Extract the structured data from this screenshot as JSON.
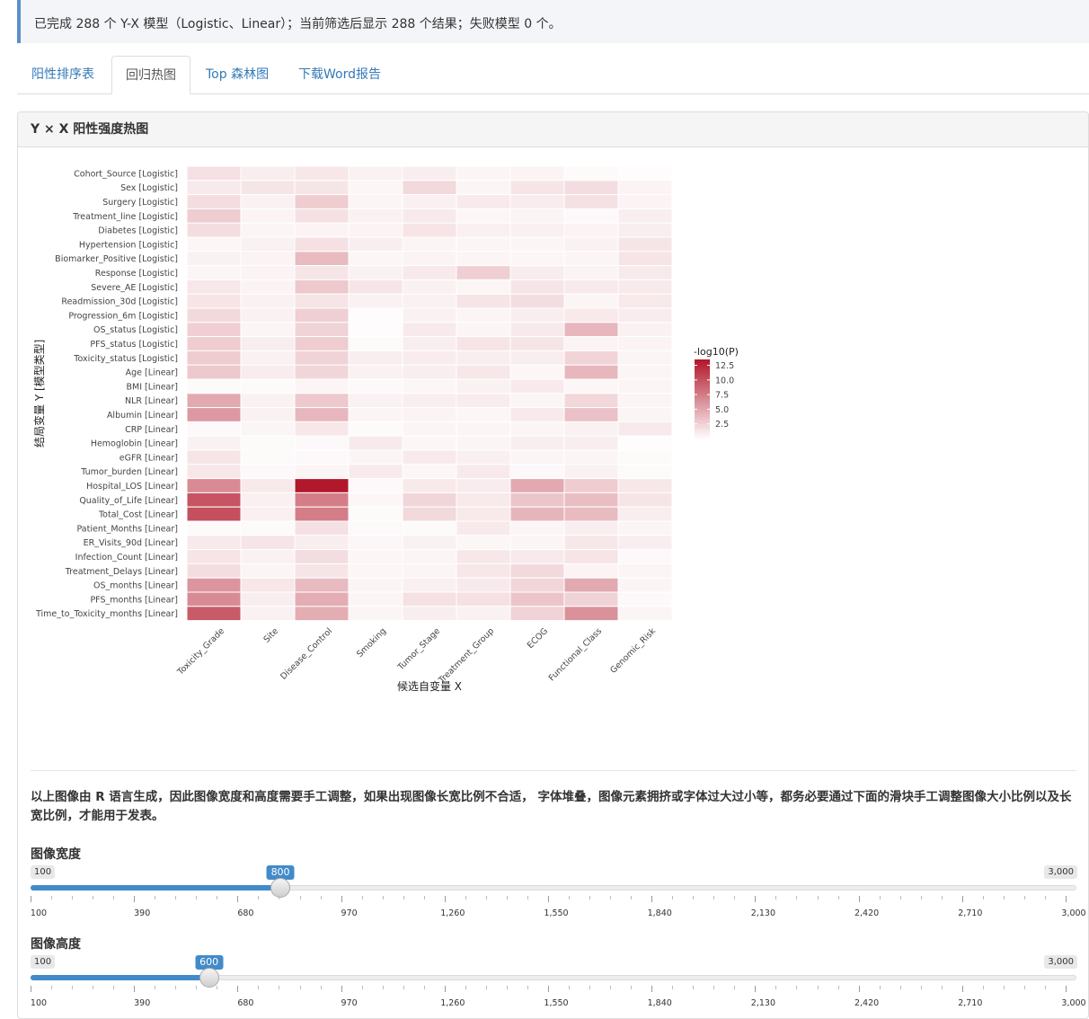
{
  "alert": {
    "text": "已完成 288 个 Y-X 模型（Logistic、Linear）；当前筛选后显示 288 个结果；失败模型 0 个。"
  },
  "tabs": [
    {
      "label": "阳性排序表",
      "active": false
    },
    {
      "label": "回归热图",
      "active": true
    },
    {
      "label": "Top 森林图",
      "active": false
    },
    {
      "label": "下载Word报告",
      "active": false
    }
  ],
  "panel": {
    "title": "Y × X 阳性强度热图"
  },
  "chart_data": {
    "type": "heatmap",
    "xlabel": "候选自变量 X",
    "ylabel": "结局变量 Y [模型类型]",
    "legend_title": "-log10(P)",
    "legend_ticks": [
      "2.5",
      "5.0",
      "7.5",
      "10.0",
      "12.5"
    ],
    "color_low": "#ffffff",
    "color_high": "#b2182b",
    "value_max": 13.5,
    "x": [
      "Toxicity_Grade",
      "Site",
      "Disease_Control",
      "Smoking",
      "Tumor_Stage",
      "Treatment_Group",
      "ECOG",
      "Functional_Class",
      "Genomic_Risk"
    ],
    "y": [
      "Cohort_Source [Logistic]",
      "Sex [Logistic]",
      "Surgery [Logistic]",
      "Treatment_line [Logistic]",
      "Diabetes [Logistic]",
      "Hypertension [Logistic]",
      "Biomarker_Positive [Logistic]",
      "Response [Logistic]",
      "Severe_AE [Logistic]",
      "Readmission_30d [Logistic]",
      "Progression_6m [Logistic]",
      "OS_status [Logistic]",
      "PFS_status [Logistic]",
      "Toxicity_status [Logistic]",
      "Age [Linear]",
      "BMI [Linear]",
      "NLR [Linear]",
      "Albumin [Linear]",
      "CRP [Linear]",
      "Hemoglobin [Linear]",
      "eGFR [Linear]",
      "Tumor_burden [Linear]",
      "Hospital_LOS [Linear]",
      "Quality_of_Life [Linear]",
      "Total_Cost [Linear]",
      "Patient_Months [Linear]",
      "ER_Visits_90d [Linear]",
      "Infection_Count [Linear]",
      "Treatment_Delays [Linear]",
      "OS_months [Linear]",
      "PFS_months [Linear]",
      "Time_to_Toxicity_months [Linear]"
    ],
    "values": [
      [
        1.8,
        1.0,
        1.4,
        0.8,
        1.0,
        0.6,
        0.7,
        0.3,
        0.2
      ],
      [
        1.2,
        1.5,
        1.5,
        0.5,
        2.2,
        0.6,
        1.5,
        2.0,
        0.7
      ],
      [
        2.0,
        0.8,
        3.0,
        0.6,
        0.9,
        1.2,
        1.1,
        1.8,
        0.7
      ],
      [
        3.0,
        0.7,
        1.8,
        0.8,
        1.2,
        0.5,
        0.7,
        0.4,
        1.0
      ],
      [
        2.0,
        0.6,
        0.7,
        0.7,
        1.6,
        0.9,
        0.9,
        0.7,
        1.0
      ],
      [
        0.5,
        0.8,
        1.8,
        1.0,
        0.6,
        0.6,
        0.6,
        0.8,
        1.5
      ],
      [
        0.8,
        0.7,
        4.0,
        0.5,
        0.7,
        0.6,
        0.5,
        0.6,
        1.6
      ],
      [
        0.6,
        0.7,
        1.5,
        0.8,
        1.3,
        2.8,
        1.1,
        0.7,
        1.2
      ],
      [
        1.4,
        0.7,
        3.2,
        1.5,
        0.8,
        0.6,
        1.5,
        1.3,
        1.2
      ],
      [
        1.6,
        0.8,
        1.6,
        0.8,
        0.8,
        1.6,
        2.0,
        0.6,
        1.3
      ],
      [
        2.2,
        0.8,
        2.8,
        0.2,
        0.8,
        0.6,
        1.0,
        1.3,
        1.1
      ],
      [
        2.8,
        0.6,
        2.6,
        0.2,
        1.2,
        0.6,
        1.2,
        4.2,
        0.8
      ],
      [
        3.0,
        1.0,
        3.0,
        0.3,
        1.0,
        1.6,
        1.5,
        0.7,
        0.7
      ],
      [
        3.0,
        0.8,
        2.6,
        1.0,
        1.1,
        1.0,
        1.0,
        2.5,
        0.6
      ],
      [
        3.2,
        1.1,
        2.4,
        0.8,
        1.0,
        1.4,
        0.5,
        4.2,
        0.6
      ],
      [
        0.3,
        0.3,
        0.6,
        0.4,
        0.5,
        0.8,
        1.2,
        0.5,
        0.6
      ],
      [
        5.0,
        0.8,
        3.2,
        0.8,
        1.0,
        1.1,
        0.6,
        2.3,
        0.6
      ],
      [
        6.0,
        0.8,
        4.2,
        0.6,
        0.7,
        0.5,
        1.2,
        3.6,
        0.6
      ],
      [
        0.4,
        0.6,
        1.4,
        0.3,
        0.6,
        0.6,
        0.6,
        0.8,
        1.2
      ],
      [
        0.8,
        0.3,
        0.4,
        1.2,
        0.5,
        0.6,
        1.0,
        1.0,
        0.2
      ],
      [
        1.5,
        0.3,
        0.4,
        0.6,
        1.2,
        0.9,
        0.6,
        0.6,
        0.3
      ],
      [
        1.4,
        0.4,
        0.6,
        1.2,
        0.5,
        1.2,
        0.4,
        0.8,
        0.3
      ],
      [
        6.8,
        1.3,
        13.5,
        0.4,
        1.3,
        1.1,
        5.0,
        3.0,
        1.4
      ],
      [
        10.0,
        0.9,
        7.6,
        0.5,
        2.4,
        1.3,
        3.4,
        3.8,
        1.5
      ],
      [
        10.3,
        0.9,
        7.6,
        0.3,
        2.2,
        1.3,
        4.3,
        4.0,
        1.0
      ],
      [
        0.3,
        0.3,
        1.8,
        0.4,
        0.3,
        1.2,
        0.6,
        1.0,
        0.6
      ],
      [
        1.3,
        1.5,
        1.0,
        0.5,
        0.8,
        0.5,
        0.6,
        1.4,
        1.0
      ],
      [
        1.6,
        0.8,
        2.0,
        0.5,
        0.6,
        1.4,
        1.2,
        1.6,
        0.4
      ],
      [
        2.0,
        0.6,
        1.5,
        0.5,
        0.6,
        1.4,
        2.2,
        0.7,
        0.6
      ],
      [
        6.2,
        1.4,
        4.0,
        0.6,
        0.9,
        1.2,
        2.4,
        5.0,
        0.6
      ],
      [
        6.8,
        1.0,
        4.8,
        0.6,
        1.8,
        1.8,
        3.4,
        2.6,
        0.4
      ],
      [
        9.6,
        0.8,
        4.8,
        0.6,
        1.0,
        0.8,
        2.6,
        6.4,
        0.6
      ]
    ]
  },
  "note": "以上图像由 R 语言生成，因此图像宽度和高度需要手工调整，如果出现图像长宽比例不合适， 字体堆叠，图像元素拥挤或字体过大过小等，都务必要通过下面的滑块手工调整图像大小比例以及长宽比例，才能用于发表。",
  "sliders": {
    "width": {
      "label": "图像宽度",
      "min": 100,
      "max": 3000,
      "value": 800,
      "min_label": "100",
      "max_label": "3,000",
      "value_label": "800"
    },
    "height": {
      "label": "图像高度",
      "min": 100,
      "max": 3000,
      "value": 600,
      "min_label": "100",
      "max_label": "3,000",
      "value_label": "600"
    },
    "tick_labels": [
      "100",
      "390",
      "680",
      "970",
      "1,260",
      "1,550",
      "1,840",
      "2,130",
      "2,420",
      "2,710",
      "3,000"
    ]
  }
}
